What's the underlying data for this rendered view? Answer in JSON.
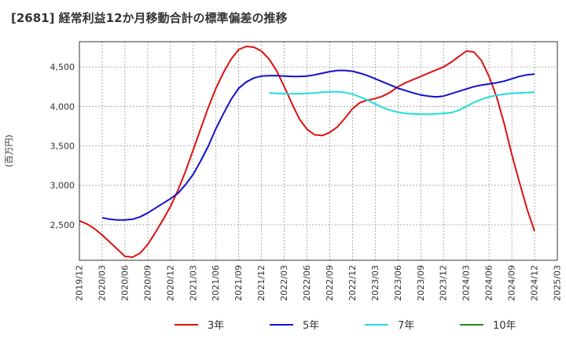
{
  "chart_data": {
    "type": "line",
    "title": "[2681]  経常利益12か月移動合計の標準偏差の推移",
    "ylabel": "(百万円)",
    "xlabel": "",
    "ylim": [
      2050,
      4820
    ],
    "xlim": [
      "2019-12",
      "2025-03"
    ],
    "y_ticks": [
      2500,
      3000,
      3500,
      4000,
      4500
    ],
    "y_tick_labels": [
      "2,500",
      "3,000",
      "3,500",
      "4,000",
      "4,500"
    ],
    "x_tick_labels": [
      "2019/12",
      "2020/03",
      "2020/06",
      "2020/09",
      "2020/12",
      "2021/03",
      "2021/06",
      "2021/09",
      "2021/12",
      "2022/03",
      "2022/06",
      "2022/09",
      "2022/12",
      "2023/03",
      "2023/06",
      "2023/09",
      "2023/12",
      "2024/03",
      "2024/06",
      "2024/09",
      "2024/12",
      "2025/03"
    ],
    "grid": true,
    "legend_position": "bottom",
    "series": [
      {
        "name": "3年",
        "color": "#dd1111",
        "x": [
          "2019-12",
          "2020-01",
          "2020-02",
          "2020-03",
          "2020-04",
          "2020-05",
          "2020-06",
          "2020-07",
          "2020-08",
          "2020-09",
          "2020-10",
          "2020-11",
          "2020-12",
          "2021-01",
          "2021-02",
          "2021-03",
          "2021-04",
          "2021-05",
          "2021-06",
          "2021-07",
          "2021-08",
          "2021-09",
          "2021-10",
          "2021-11",
          "2021-12",
          "2022-01",
          "2022-02",
          "2022-03",
          "2022-04",
          "2022-05",
          "2022-06",
          "2022-07",
          "2022-08",
          "2022-09",
          "2022-10",
          "2022-11",
          "2022-12",
          "2023-01",
          "2023-02",
          "2023-03",
          "2023-04",
          "2023-05",
          "2023-06",
          "2023-07",
          "2023-08",
          "2023-09",
          "2023-10",
          "2023-11",
          "2023-12",
          "2024-01",
          "2024-02",
          "2024-03",
          "2024-04",
          "2024-05",
          "2024-06",
          "2024-07",
          "2024-08",
          "2024-09",
          "2024-10",
          "2024-11",
          "2024-12"
        ],
        "values": [
          2550,
          2510,
          2450,
          2370,
          2280,
          2190,
          2100,
          2090,
          2140,
          2250,
          2400,
          2560,
          2730,
          2940,
          3180,
          3450,
          3720,
          3990,
          4230,
          4430,
          4600,
          4720,
          4760,
          4750,
          4700,
          4600,
          4450,
          4250,
          4040,
          3840,
          3710,
          3640,
          3630,
          3670,
          3740,
          3850,
          3970,
          4050,
          4080,
          4100,
          4130,
          4180,
          4250,
          4300,
          4340,
          4380,
          4420,
          4460,
          4500,
          4560,
          4630,
          4700,
          4690,
          4580,
          4380,
          4120,
          3780,
          3390,
          3040,
          2700,
          2420
        ]
      },
      {
        "name": "5年",
        "color": "#1111cc",
        "x": [
          "2020-03",
          "2020-04",
          "2020-05",
          "2020-06",
          "2020-07",
          "2020-08",
          "2020-09",
          "2020-10",
          "2020-11",
          "2020-12",
          "2021-01",
          "2021-02",
          "2021-03",
          "2021-04",
          "2021-05",
          "2021-06",
          "2021-07",
          "2021-08",
          "2021-09",
          "2021-10",
          "2021-11",
          "2021-12",
          "2022-01",
          "2022-02",
          "2022-03",
          "2022-04",
          "2022-05",
          "2022-06",
          "2022-07",
          "2022-08",
          "2022-09",
          "2022-10",
          "2022-11",
          "2022-12",
          "2023-01",
          "2023-02",
          "2023-03",
          "2023-04",
          "2023-05",
          "2023-06",
          "2023-07",
          "2023-08",
          "2023-09",
          "2023-10",
          "2023-11",
          "2023-12",
          "2024-01",
          "2024-02",
          "2024-03",
          "2024-04",
          "2024-05",
          "2024-06",
          "2024-07",
          "2024-08",
          "2024-09",
          "2024-10",
          "2024-11",
          "2024-12"
        ],
        "values": [
          2590,
          2570,
          2560,
          2560,
          2570,
          2600,
          2650,
          2710,
          2770,
          2830,
          2900,
          3010,
          3140,
          3310,
          3500,
          3720,
          3910,
          4090,
          4230,
          4310,
          4360,
          4385,
          4390,
          4390,
          4385,
          4380,
          4380,
          4385,
          4400,
          4420,
          4440,
          4455,
          4455,
          4445,
          4420,
          4390,
          4350,
          4310,
          4270,
          4230,
          4200,
          4170,
          4145,
          4130,
          4120,
          4130,
          4160,
          4190,
          4220,
          4250,
          4270,
          4285,
          4300,
          4320,
          4350,
          4380,
          4400,
          4410
        ]
      },
      {
        "name": "7年",
        "color": "#22dddd",
        "x": [
          "2022-01",
          "2022-02",
          "2022-03",
          "2022-04",
          "2022-05",
          "2022-06",
          "2022-07",
          "2022-08",
          "2022-09",
          "2022-10",
          "2022-11",
          "2022-12",
          "2023-01",
          "2023-02",
          "2023-03",
          "2023-04",
          "2023-05",
          "2023-06",
          "2023-07",
          "2023-08",
          "2023-09",
          "2023-10",
          "2023-11",
          "2023-12",
          "2024-01",
          "2024-02",
          "2024-03",
          "2024-04",
          "2024-05",
          "2024-06",
          "2024-07",
          "2024-08",
          "2024-09",
          "2024-10",
          "2024-11",
          "2024-12"
        ],
        "values": [
          4170,
          4165,
          4160,
          4160,
          4160,
          4165,
          4170,
          4180,
          4185,
          4185,
          4175,
          4155,
          4120,
          4080,
          4030,
          3985,
          3950,
          3925,
          3910,
          3905,
          3900,
          3900,
          3905,
          3910,
          3920,
          3950,
          4000,
          4050,
          4090,
          4120,
          4140,
          4155,
          4165,
          4170,
          4175,
          4180
        ]
      },
      {
        "name": "10年",
        "color": "#228822",
        "x": [],
        "values": []
      }
    ]
  }
}
